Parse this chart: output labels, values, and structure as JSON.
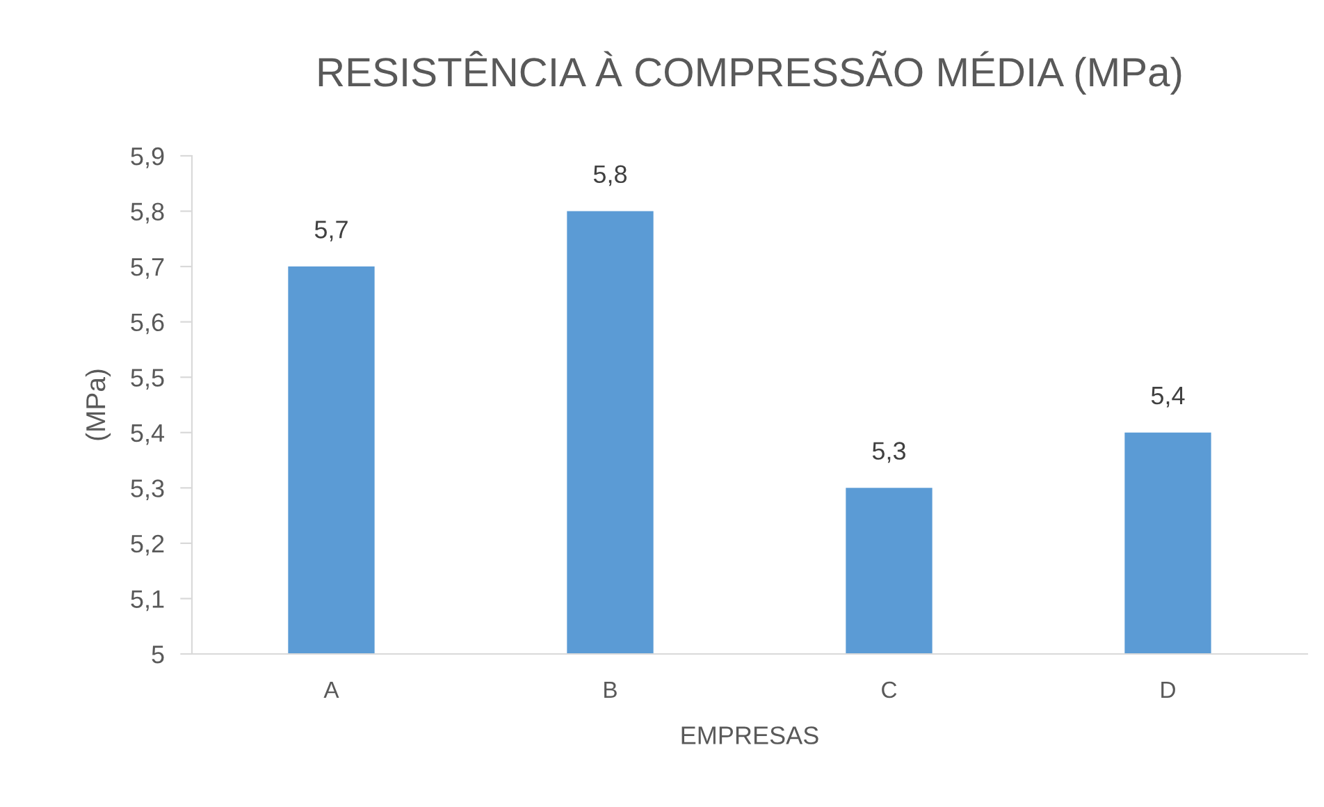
{
  "chart_data": {
    "type": "bar",
    "title": "RESISTÊNCIA À COMPRESSÃO MÉDIA (MPa)",
    "xlabel": "EMPRESAS",
    "ylabel": "(MPa)",
    "categories": [
      "A",
      "B",
      "C",
      "D"
    ],
    "values": [
      5.7,
      5.8,
      5.3,
      5.4
    ],
    "value_labels": [
      "5,7",
      "5,8",
      "5,3",
      "5,4"
    ],
    "color": "#5b9bd5",
    "ylim": [
      5,
      5.9
    ],
    "yticks": [
      {
        "value": 5,
        "label": "5"
      },
      {
        "value": 5.1,
        "label": "5,1"
      },
      {
        "value": 5.2,
        "label": "5,2"
      },
      {
        "value": 5.3,
        "label": "5,3"
      },
      {
        "value": 5.4,
        "label": "5,4"
      },
      {
        "value": 5.5,
        "label": "5,5"
      },
      {
        "value": 5.6,
        "label": "5,6"
      },
      {
        "value": 5.7,
        "label": "5,7"
      },
      {
        "value": 5.8,
        "label": "5,8"
      },
      {
        "value": 5.9,
        "label": "5,9"
      }
    ],
    "grid": false
  }
}
